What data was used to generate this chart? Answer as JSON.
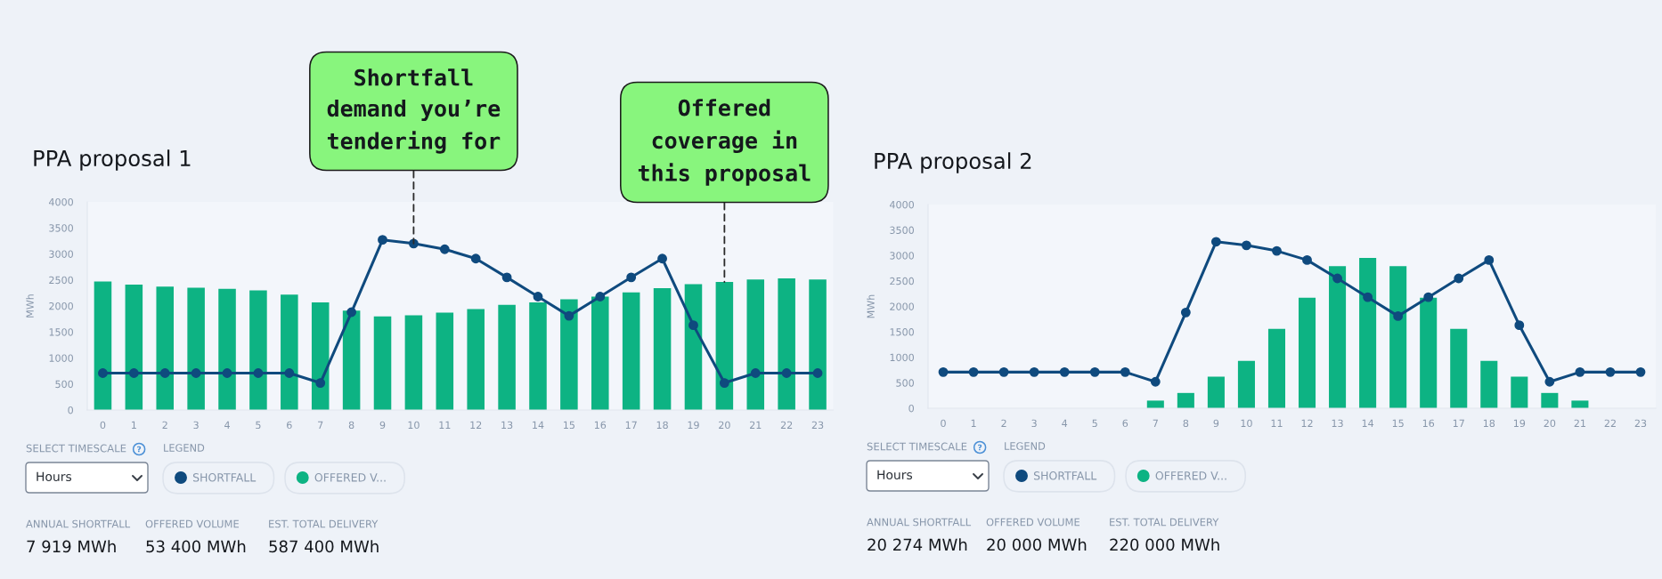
{
  "chart_data": [
    {
      "type": "bar",
      "title": "PPA proposal 1",
      "ylabel": "MWh",
      "categories": [
        "0",
        "1",
        "2",
        "3",
        "4",
        "5",
        "6",
        "7",
        "8",
        "9",
        "10",
        "11",
        "12",
        "13",
        "14",
        "15",
        "16",
        "17",
        "18",
        "19",
        "20",
        "21",
        "22",
        "23"
      ],
      "series": [
        {
          "name": "SHORTFALL",
          "type": "line",
          "color": "#0f4a7e",
          "values": [
            710,
            710,
            710,
            710,
            710,
            710,
            710,
            520,
            1880,
            3270,
            3200,
            3090,
            2910,
            2550,
            2180,
            1810,
            2180,
            2550,
            2910,
            1630,
            520,
            710,
            710,
            710
          ]
        },
        {
          "name": "OFFERED V...",
          "color": "#0db383",
          "values": [
            2470,
            2410,
            2370,
            2350,
            2330,
            2300,
            2220,
            2070,
            1910,
            1800,
            1820,
            1870,
            1940,
            2020,
            2070,
            2130,
            2180,
            2260,
            2340,
            2420,
            2460,
            2510,
            2530,
            2510
          ]
        }
      ],
      "ylim": [
        0,
        4000
      ],
      "yticks": [
        0,
        500,
        1000,
        1500,
        2000,
        2500,
        3000,
        3500,
        4000
      ],
      "marker": "circle",
      "legend": "bottom left",
      "legend_title": "LEGEND",
      "annotations": [
        {
          "text": "Shortfall\ndemand you’re\ntendering for",
          "x": "10",
          "y": 3200
        },
        {
          "text": "Offered\ncoverage in\nthis proposal",
          "x": "20",
          "y": 2460
        },
        "SELECT TIMESCALE",
        "Hours",
        "ANNUAL SHORTFALL",
        "7 919 MWh",
        "OFFERED VOLUME",
        "53 400 MWh",
        "EST. TOTAL DELIVERY",
        "587 400 MWh"
      ]
    },
    {
      "type": "bar",
      "title": "PPA proposal 2",
      "ylabel": "MWh",
      "categories": [
        "0",
        "1",
        "2",
        "3",
        "4",
        "5",
        "6",
        "7",
        "8",
        "9",
        "10",
        "11",
        "12",
        "13",
        "14",
        "15",
        "16",
        "17",
        "18",
        "19",
        "20",
        "21",
        "22",
        "23"
      ],
      "series": [
        {
          "name": "SHORTFALL",
          "type": "line",
          "color": "#0f4a7e",
          "values": [
            710,
            710,
            710,
            710,
            710,
            710,
            710,
            520,
            1880,
            3270,
            3200,
            3090,
            2910,
            2550,
            2180,
            1810,
            2180,
            2550,
            2910,
            1630,
            520,
            710,
            710,
            710
          ]
        },
        {
          "name": "OFFERED V...",
          "color": "#0db383",
          "values": [
            null,
            null,
            null,
            null,
            null,
            null,
            null,
            150,
            300,
            620,
            930,
            1560,
            2170,
            2790,
            2950,
            2790,
            2170,
            1560,
            930,
            620,
            300,
            150,
            null,
            null
          ]
        }
      ],
      "ylim": [
        0,
        4000
      ],
      "yticks": [
        0,
        500,
        1000,
        1500,
        2000,
        2500,
        3000,
        3500,
        4000
      ],
      "marker": "circle",
      "legend": "bottom left",
      "legend_title": "LEGEND",
      "annotations": [
        "SELECT TIMESCALE",
        "Hours",
        "ANNUAL SHORTFALL",
        "20 274 MWh",
        "OFFERED VOLUME",
        "20 000 MWh",
        "EST. TOTAL DELIVERY",
        "220 000 MWh"
      ]
    }
  ]
}
